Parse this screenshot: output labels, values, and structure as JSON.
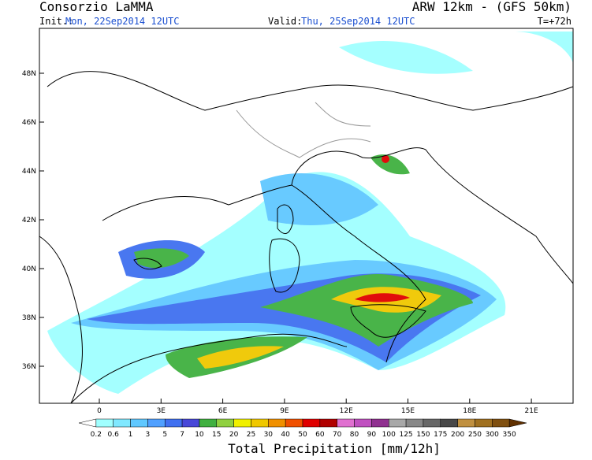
{
  "header": {
    "title": "Consorzio LaMMA",
    "model": "ARW 12km  -  (GFS 50km)",
    "init_label": "Init.:",
    "init": "Mon, 22Sep2014 12UTC",
    "valid_label": "Valid:",
    "valid": "Thu, 25Sep2014 12UTC",
    "lead": "T=+72h"
  },
  "map": {
    "lat_ticks": [
      "48N",
      "46N",
      "44N",
      "42N",
      "40N",
      "38N",
      "36N"
    ],
    "lon_ticks": [
      "0",
      "3E",
      "6E",
      "9E",
      "12E",
      "15E",
      "18E",
      "21E"
    ]
  },
  "colorbar": {
    "levels": [
      "0.2",
      "0.6",
      "1",
      "3",
      "5",
      "7",
      "10",
      "15",
      "20",
      "25",
      "30",
      "40",
      "50",
      "60",
      "70",
      "80",
      "90",
      "100",
      "125",
      "150",
      "175",
      "200",
      "250",
      "300",
      "350"
    ],
    "colors": [
      "#ffffff",
      "#a0ffff",
      "#80e8ff",
      "#60c8ff",
      "#50a0ff",
      "#4070f0",
      "#4848d8",
      "#40b040",
      "#90d040",
      "#f0f000",
      "#f0c800",
      "#f09000",
      "#f05000",
      "#e00000",
      "#b00000",
      "#e070d0",
      "#c050c0",
      "#903090",
      "#a8a8a8",
      "#888888",
      "#686868",
      "#484848",
      "#c09040",
      "#a07020",
      "#805010",
      "#603000"
    ],
    "title": "Total Precipitation [mm/12h]"
  }
}
